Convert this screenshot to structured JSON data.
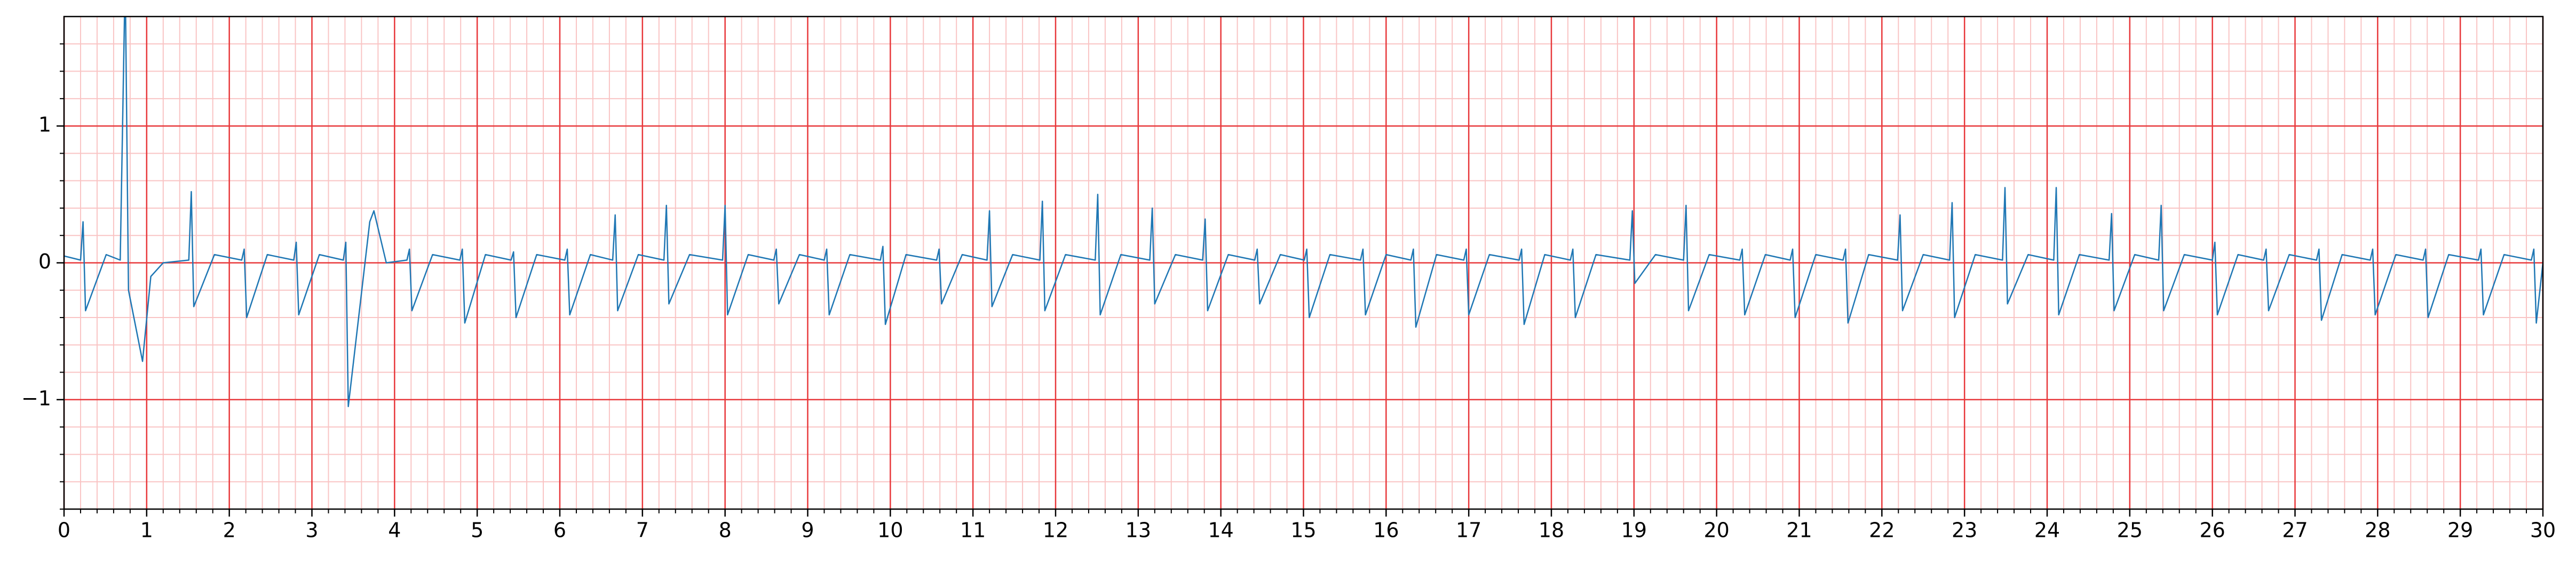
{
  "chart_data": {
    "type": "line",
    "x": [
      0,
      0.2,
      0.23,
      0.26,
      0.51,
      0.68,
      0.74,
      0.78,
      0.95,
      1.05,
      1.2,
      1.51,
      1.54,
      1.57,
      1.82,
      2.15,
      2.18,
      2.21,
      2.46,
      2.78,
      2.81,
      2.84,
      3.09,
      3.38,
      3.41,
      3.44,
      3.7,
      3.75,
      3.9,
      4.15,
      4.18,
      4.21,
      4.46,
      4.79,
      4.82,
      4.85,
      5.1,
      5.41,
      5.44,
      5.47,
      5.72,
      6.06,
      6.09,
      6.12,
      6.37,
      6.64,
      6.67,
      6.7,
      6.95,
      7.26,
      7.29,
      7.32,
      7.57,
      7.97,
      8.0,
      8.03,
      8.28,
      8.59,
      8.62,
      8.65,
      8.9,
      9.2,
      9.23,
      9.26,
      9.51,
      9.88,
      9.91,
      9.94,
      10.19,
      10.56,
      10.59,
      10.62,
      10.87,
      11.17,
      11.2,
      11.23,
      11.48,
      11.81,
      11.84,
      11.87,
      12.12,
      12.48,
      12.51,
      12.54,
      12.79,
      13.14,
      13.17,
      13.2,
      13.45,
      13.78,
      13.81,
      13.84,
      14.09,
      14.41,
      14.44,
      14.47,
      14.72,
      15.01,
      15.04,
      15.07,
      15.32,
      15.69,
      15.72,
      15.75,
      16.0,
      16.3,
      16.33,
      16.36,
      16.61,
      16.94,
      16.97,
      17.0,
      17.25,
      17.61,
      17.64,
      17.67,
      17.92,
      18.23,
      18.26,
      18.29,
      18.54,
      18.95,
      18.98,
      19.01,
      19.26,
      19.6,
      19.63,
      19.66,
      19.91,
      20.28,
      20.31,
      20.34,
      20.59,
      20.89,
      20.92,
      20.95,
      21.2,
      21.53,
      21.56,
      21.59,
      21.84,
      22.19,
      22.22,
      22.25,
      22.5,
      22.82,
      22.85,
      22.88,
      23.13,
      23.46,
      23.49,
      23.52,
      23.77,
      24.08,
      24.11,
      24.14,
      24.39,
      24.75,
      24.78,
      24.81,
      25.06,
      25.35,
      25.38,
      25.41,
      25.66,
      26.0,
      26.03,
      26.06,
      26.31,
      26.62,
      26.65,
      26.68,
      26.93,
      27.26,
      27.29,
      27.32,
      27.57,
      27.91,
      27.94,
      27.97,
      28.22,
      28.55,
      28.58,
      28.61,
      28.86,
      29.22,
      29.25,
      29.28,
      29.53,
      29.86,
      29.89,
      29.92,
      30
    ],
    "series": [
      {
        "color": "#1f77b4",
        "values": [
          0.05,
          0.02,
          0.3,
          -0.35,
          0.06,
          0.02,
          2.1,
          -0.2,
          -0.72,
          -0.1,
          0.0,
          0.02,
          0.52,
          -0.32,
          0.06,
          0.02,
          0.1,
          -0.4,
          0.06,
          0.02,
          0.15,
          -0.38,
          0.06,
          0.02,
          0.15,
          -1.05,
          0.3,
          0.38,
          0.0,
          0.02,
          0.1,
          -0.35,
          0.06,
          0.02,
          0.1,
          -0.44,
          0.06,
          0.02,
          0.08,
          -0.4,
          0.06,
          0.02,
          0.1,
          -0.38,
          0.06,
          0.02,
          0.35,
          -0.35,
          0.06,
          0.02,
          0.42,
          -0.3,
          0.06,
          0.02,
          0.42,
          -0.38,
          0.06,
          0.02,
          0.1,
          -0.3,
          0.06,
          0.02,
          0.1,
          -0.38,
          0.06,
          0.02,
          0.12,
          -0.45,
          0.06,
          0.02,
          0.1,
          -0.3,
          0.06,
          0.02,
          0.38,
          -0.32,
          0.06,
          0.02,
          0.45,
          -0.35,
          0.06,
          0.02,
          0.5,
          -0.38,
          0.06,
          0.02,
          0.4,
          -0.3,
          0.06,
          0.02,
          0.32,
          -0.35,
          0.06,
          0.02,
          0.1,
          -0.3,
          0.06,
          0.02,
          0.1,
          -0.4,
          0.06,
          0.02,
          0.1,
          -0.38,
          0.06,
          0.02,
          0.1,
          -0.47,
          0.06,
          0.02,
          0.1,
          -0.38,
          0.06,
          0.02,
          0.1,
          -0.45,
          0.06,
          0.02,
          0.1,
          -0.4,
          0.06,
          0.02,
          0.38,
          -0.15,
          0.06,
          0.02,
          0.42,
          -0.35,
          0.06,
          0.02,
          0.1,
          -0.38,
          0.06,
          0.02,
          0.1,
          -0.4,
          0.06,
          0.02,
          0.1,
          -0.44,
          0.06,
          0.02,
          0.35,
          -0.35,
          0.06,
          0.02,
          0.44,
          -0.4,
          0.06,
          0.02,
          0.55,
          -0.3,
          0.06,
          0.02,
          0.55,
          -0.38,
          0.06,
          0.02,
          0.36,
          -0.35,
          0.06,
          0.02,
          0.42,
          -0.35,
          0.06,
          0.02,
          0.15,
          -0.38,
          0.06,
          0.02,
          0.1,
          -0.35,
          0.06,
          0.02,
          0.1,
          -0.42,
          0.06,
          0.02,
          0.1,
          -0.38,
          0.06,
          0.02,
          0.1,
          -0.4,
          0.06,
          0.02,
          0.1,
          -0.38,
          0.06,
          0.02,
          0.1,
          -0.44,
          0.0
        ]
      }
    ],
    "xlim": [
      0,
      30
    ],
    "xticks": [
      0,
      1,
      2,
      3,
      4,
      5,
      6,
      7,
      8,
      9,
      10,
      11,
      12,
      13,
      14,
      15,
      16,
      17,
      18,
      19,
      20,
      21,
      22,
      23,
      24,
      25,
      26,
      27,
      28,
      29,
      30
    ],
    "ylim": [
      -1.8,
      1.8
    ],
    "yticks": [
      {
        "value": -1,
        "label": "−1"
      },
      0,
      1
    ],
    "grid": true,
    "grid_color": "#e8383b",
    "minor_grid_color": "#f9c4c4"
  }
}
